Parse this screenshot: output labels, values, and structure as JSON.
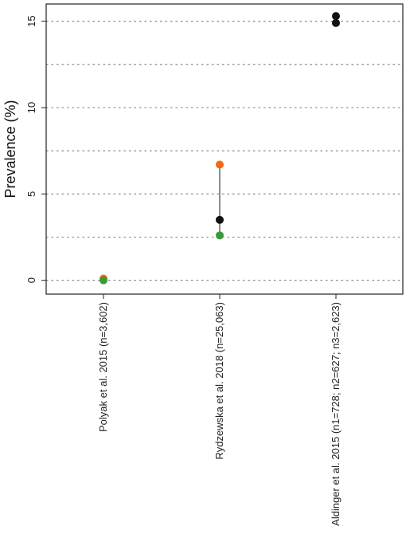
{
  "chart_data": {
    "type": "scatter",
    "title": "",
    "xlabel": "",
    "ylabel": "Prevalence (%)",
    "ylim": [
      -0.8,
      16
    ],
    "yticks": [
      0,
      5,
      10,
      15
    ],
    "gridlines": [
      0,
      2.5,
      5,
      7.5,
      10,
      12.5,
      15
    ],
    "grid": true,
    "legend": "none",
    "categories": [
      "Polyak et al. 2015 (n=3,602)",
      "Rydzewska  et al.  2018 (n=25,063)",
      "Aldinger et al. 2015 (n1=728; n2=627; n3=2,623)"
    ],
    "series": [
      {
        "color": "#f26b13",
        "values": [
          0.1,
          6.7,
          null
        ]
      },
      {
        "color": "#111111",
        "values": [
          null,
          3.5,
          15.3
        ]
      },
      {
        "color": "#111111",
        "values": [
          null,
          null,
          14.9
        ]
      },
      {
        "color": "#3a9a3a",
        "values": [
          0.0,
          2.6,
          null
        ]
      }
    ],
    "ranges": [
      {
        "category": 1,
        "low": 2.6,
        "high": 6.7
      }
    ]
  }
}
